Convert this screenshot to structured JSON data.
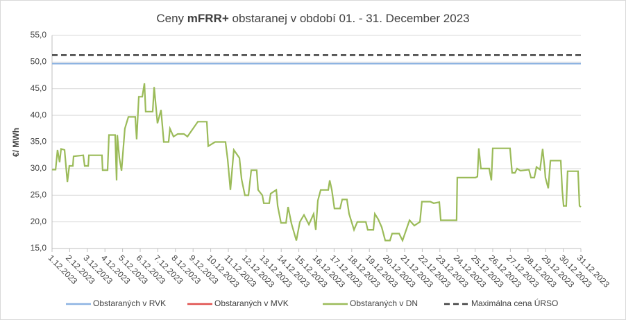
{
  "chart_data": {
    "type": "line",
    "title": [
      "Ceny ",
      "mFRR+",
      " obstaranej v období 01. - 31. December 2023"
    ],
    "ylabel": "€/ MWh",
    "xlim": [
      0,
      30
    ],
    "ylim": [
      15,
      55
    ],
    "grid": true,
    "legend": "bottom",
    "yticks": [
      {
        "value": 15,
        "label": "15,0"
      },
      {
        "value": 20,
        "label": "20,0"
      },
      {
        "value": 25,
        "label": "25,0"
      },
      {
        "value": 30,
        "label": "30,0"
      },
      {
        "value": 35,
        "label": "35,0"
      },
      {
        "value": 40,
        "label": "40,0"
      },
      {
        "value": 45,
        "label": "45,0"
      },
      {
        "value": 50,
        "label": "50,0"
      },
      {
        "value": 55,
        "label": "55,0"
      }
    ],
    "xticks": [
      {
        "value": 0,
        "label": "1.12.2023"
      },
      {
        "value": 1,
        "label": "2.12.2023"
      },
      {
        "value": 2,
        "label": "3.12.2023"
      },
      {
        "value": 3,
        "label": "4.12.2023"
      },
      {
        "value": 4,
        "label": "5.12.2023"
      },
      {
        "value": 5,
        "label": "6.12.2023"
      },
      {
        "value": 6,
        "label": "7.12.2023"
      },
      {
        "value": 7,
        "label": "8.12.2023"
      },
      {
        "value": 8,
        "label": "9.12.2023"
      },
      {
        "value": 9,
        "label": "10.12.2023"
      },
      {
        "value": 10,
        "label": "11.12.2023"
      },
      {
        "value": 11,
        "label": "12.12.2023"
      },
      {
        "value": 12,
        "label": "13.12.2023"
      },
      {
        "value": 13,
        "label": "14.12.2023"
      },
      {
        "value": 14,
        "label": "15.12.2023"
      },
      {
        "value": 15,
        "label": "16.12.2023"
      },
      {
        "value": 16,
        "label": "17.12.2023"
      },
      {
        "value": 17,
        "label": "18.12.2023"
      },
      {
        "value": 18,
        "label": "19.12.2023"
      },
      {
        "value": 19,
        "label": "20.12.2023"
      },
      {
        "value": 20,
        "label": "21.12.2023"
      },
      {
        "value": 21,
        "label": "22.12.2023"
      },
      {
        "value": 22,
        "label": "23.12.2023"
      },
      {
        "value": 23,
        "label": "24.12.2023"
      },
      {
        "value": 24,
        "label": "25.12.2023"
      },
      {
        "value": 25,
        "label": "26.12.2023"
      },
      {
        "value": 26,
        "label": "27.12.2023"
      },
      {
        "value": 27,
        "label": "28.12.2023"
      },
      {
        "value": 28,
        "label": "29.12.2023"
      },
      {
        "value": 29,
        "label": "30.12.2023"
      },
      {
        "value": 30,
        "label": "31.12.2023"
      }
    ],
    "series": [
      {
        "name": "Obstaraných v RVK",
        "color": "#8db3e2",
        "x": [
          0,
          30
        ],
        "values": [
          49.7,
          49.7
        ]
      },
      {
        "name": "Obstaraných v MVK",
        "color": "#e0504d"
      },
      {
        "name": "Obstaraných v DN",
        "color": "#9bbb59",
        "x": [
          0.0,
          0.2,
          0.31,
          0.43,
          0.51,
          0.71,
          0.87,
          0.98,
          1.18,
          1.22,
          1.77,
          1.85,
          2.05,
          2.09,
          2.83,
          2.87,
          3.15,
          3.23,
          3.58,
          3.66,
          3.7,
          3.82,
          3.94,
          4.13,
          4.33,
          4.72,
          4.8,
          4.92,
          5.12,
          5.24,
          5.31,
          5.71,
          5.79,
          5.98,
          6.18,
          6.34,
          6.61,
          6.69,
          6.89,
          7.13,
          7.48,
          7.68,
          8.27,
          8.78,
          8.86,
          9.25,
          9.84,
          9.96,
          10.12,
          10.31,
          10.63,
          10.75,
          10.94,
          11.14,
          11.3,
          11.61,
          11.69,
          11.93,
          12.01,
          12.32,
          12.4,
          12.72,
          12.8,
          12.99,
          13.27,
          13.39,
          13.58,
          13.86,
          14.06,
          14.29,
          14.57,
          14.84,
          14.96,
          15.08,
          15.24,
          15.67,
          15.75,
          15.87,
          16.02,
          16.34,
          16.46,
          16.73,
          16.85,
          17.13,
          17.32,
          17.8,
          17.91,
          18.23,
          18.31,
          18.5,
          18.7,
          18.9,
          19.17,
          19.29,
          19.69,
          19.88,
          20.28,
          20.55,
          20.87,
          20.98,
          21.46,
          21.65,
          21.97,
          22.05,
          22.95,
          22.99,
          24.02,
          24.13,
          24.21,
          24.33,
          24.8,
          24.92,
          25.0,
          25.98,
          26.1,
          26.26,
          26.38,
          26.57,
          27.05,
          27.17,
          27.36,
          27.48,
          27.68,
          27.83,
          27.95,
          27.99,
          28.15,
          28.27,
          28.86,
          28.94,
          29.02,
          29.17,
          29.25,
          29.84,
          29.92,
          30.0
        ],
        "values": [
          29.8,
          29.8,
          33.5,
          31.2,
          33.7,
          33.5,
          27.5,
          30.5,
          30.5,
          32.3,
          32.5,
          30.5,
          30.5,
          32.5,
          32.5,
          29.7,
          29.7,
          36.3,
          36.3,
          27.8,
          36.3,
          32,
          29.6,
          37.5,
          39.7,
          39.7,
          35.5,
          43.5,
          43.5,
          46,
          40.7,
          40.7,
          45.3,
          38.5,
          41,
          35,
          35,
          37.5,
          36,
          36.5,
          36.5,
          36,
          38.8,
          38.8,
          34.2,
          35,
          35,
          31.8,
          26,
          33.5,
          32,
          28,
          25,
          25,
          29.7,
          29.7,
          26,
          25,
          23.5,
          23.5,
          25.3,
          26,
          23,
          19.8,
          19.8,
          22.8,
          19.7,
          16.5,
          20,
          21.3,
          19.5,
          21.5,
          18.5,
          24,
          26,
          26,
          27.8,
          26,
          22.5,
          22.5,
          24.2,
          24.2,
          21.5,
          18.5,
          20,
          20,
          18.5,
          18.5,
          21.5,
          20.5,
          19,
          16.5,
          16.5,
          17.8,
          17.8,
          16.5,
          20.3,
          19.3,
          20,
          23.8,
          23.8,
          23.5,
          23.7,
          20.3,
          20.3,
          28.3,
          28.3,
          28.5,
          33.8,
          30,
          30,
          27.8,
          33.8,
          33.8,
          29.2,
          29.2,
          30,
          29.6,
          29.8,
          28.3,
          28.3,
          30.3,
          29.8,
          33.7,
          30,
          28.3,
          26.3,
          31.5,
          31.5,
          26,
          23,
          23,
          29.5,
          29.5,
          23,
          22.8
        ]
      },
      {
        "name": "Maximálna cena ÚRSO",
        "color": "#404040",
        "dashed": true,
        "x": [
          0,
          30
        ],
        "values": [
          51.3,
          51.3
        ]
      }
    ]
  }
}
